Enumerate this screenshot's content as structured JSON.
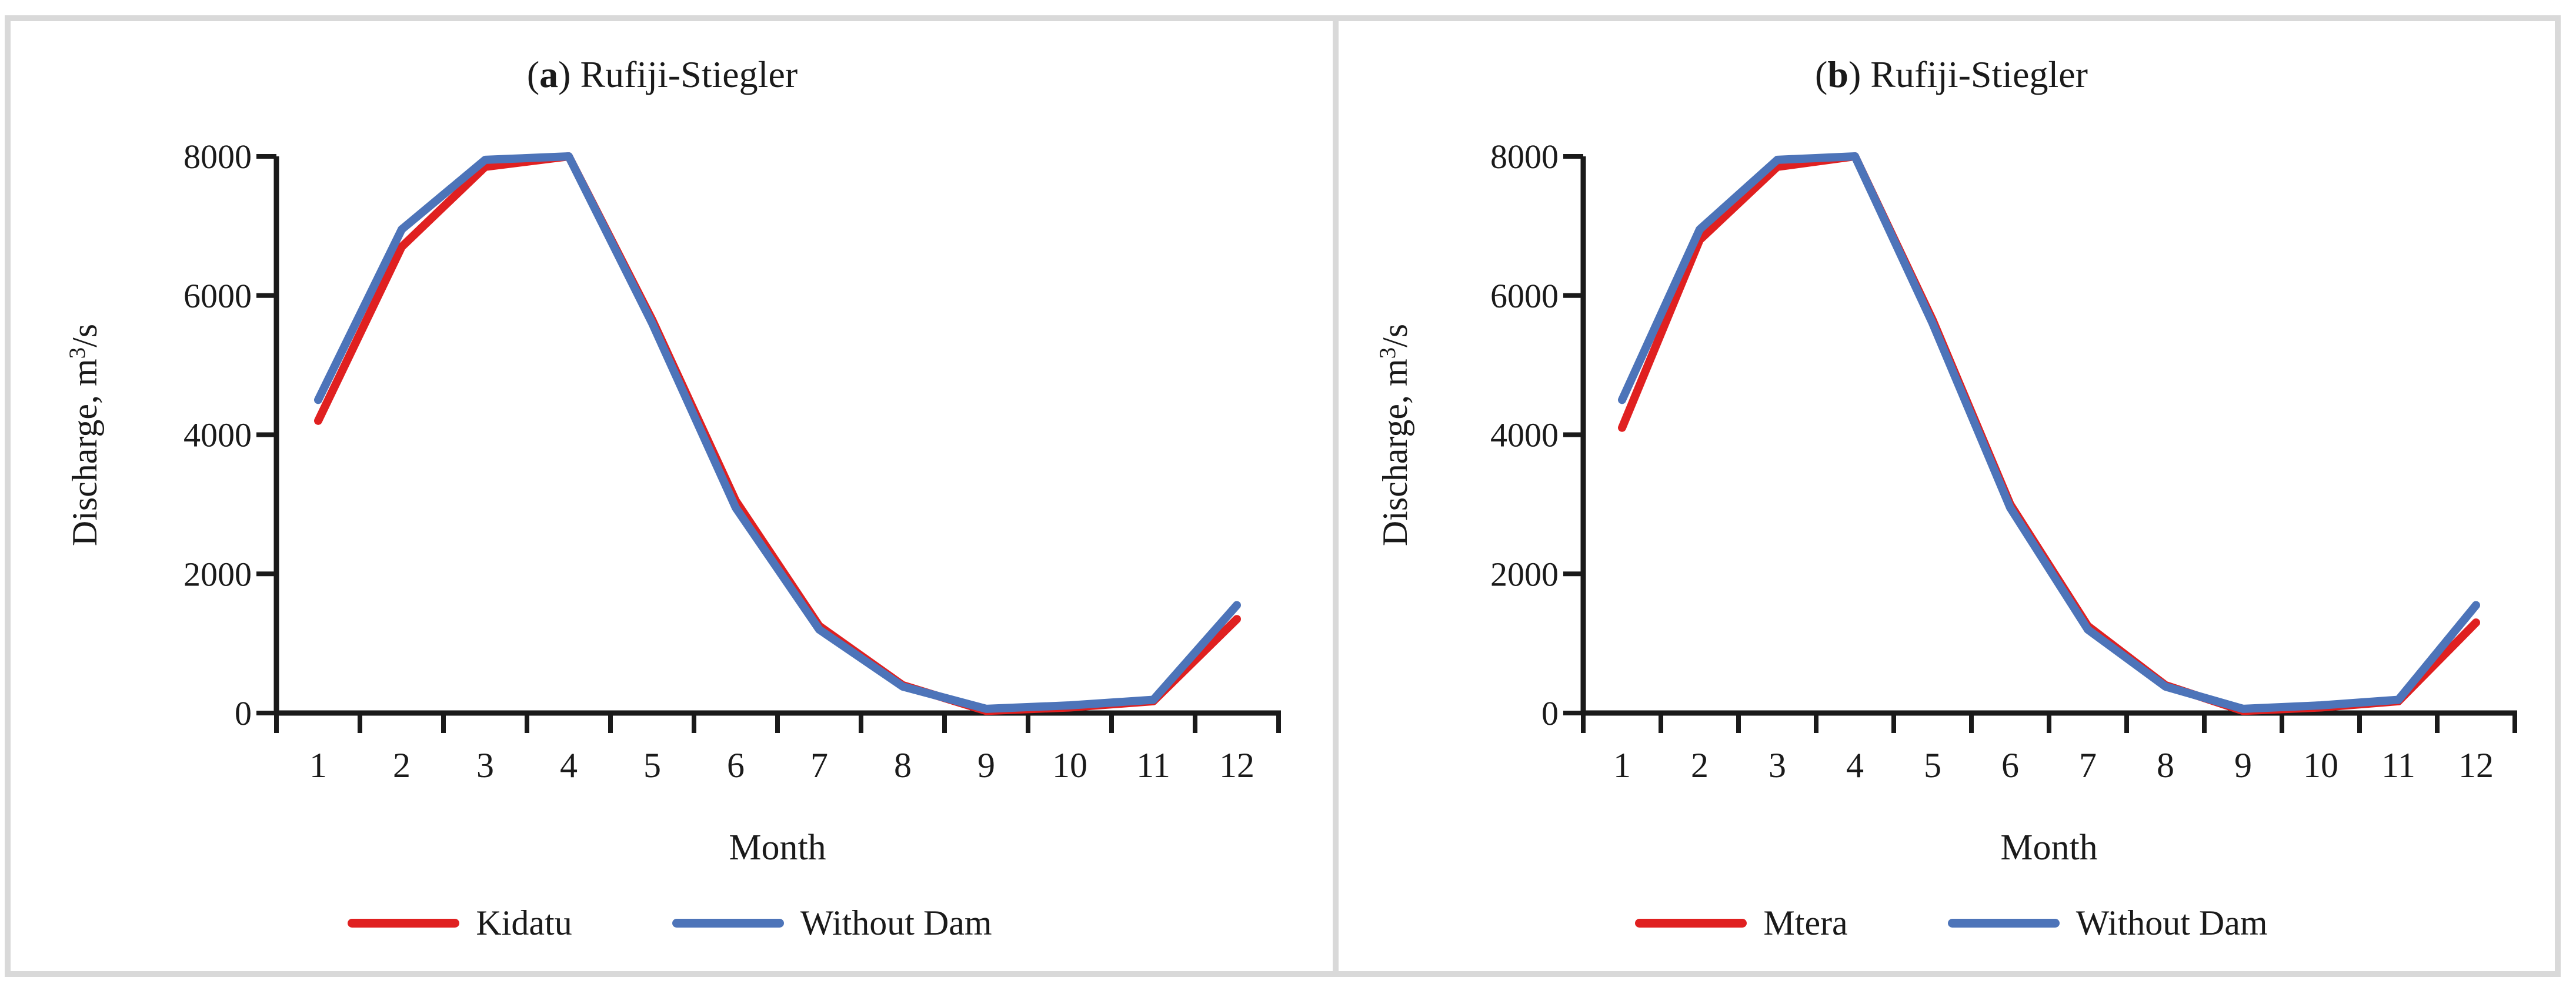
{
  "figure": {
    "frame_color": "#d9d9d9",
    "background": "#ffffff",
    "axis_color": "#1a1a1a",
    "text_color": "#1a1a1a"
  },
  "chart_data": [
    {
      "type": "line",
      "panel_label": "a",
      "title": "Rufiji-Stiegler",
      "xlabel": "Month",
      "ylabel": "Discharge, m³/s",
      "x": [
        1,
        2,
        3,
        4,
        5,
        6,
        7,
        8,
        9,
        10,
        11,
        12
      ],
      "x_tick_labels": [
        "1",
        "2",
        "3",
        "4",
        "5",
        "6",
        "7",
        "8",
        "9",
        "10",
        "11",
        "12"
      ],
      "y_tick_labels": [
        "0",
        "2000",
        "4000",
        "6000",
        "8000"
      ],
      "ylim": [
        0,
        8000
      ],
      "y_tick_step": 2000,
      "grid": false,
      "legend_position": "bottom",
      "series": [
        {
          "name": "Kidatu",
          "color": "#e02020",
          "values": [
            4200,
            6700,
            7850,
            8000,
            5650,
            3050,
            1250,
            400,
            30,
            80,
            170,
            1350
          ]
        },
        {
          "name": "Without Dam",
          "color": "#4d74b9",
          "values": [
            4500,
            6950,
            7950,
            8000,
            5600,
            2950,
            1200,
            380,
            60,
            110,
            190,
            1550
          ]
        }
      ]
    },
    {
      "type": "line",
      "panel_label": "b",
      "title": "Rufiji-Stiegler",
      "xlabel": "Month",
      "ylabel": "Discharge, m³/s",
      "x": [
        1,
        2,
        3,
        4,
        5,
        6,
        7,
        8,
        9,
        10,
        11,
        12
      ],
      "x_tick_labels": [
        "1",
        "2",
        "3",
        "4",
        "5",
        "6",
        "7",
        "8",
        "9",
        "10",
        "11",
        "12"
      ],
      "y_tick_labels": [
        "0",
        "2000",
        "4000",
        "6000",
        "8000"
      ],
      "ylim": [
        0,
        8000
      ],
      "y_tick_step": 2000,
      "grid": false,
      "legend_position": "bottom",
      "series": [
        {
          "name": "Mtera",
          "color": "#e02020",
          "values": [
            4100,
            6800,
            7850,
            8000,
            5650,
            3000,
            1250,
            400,
            30,
            80,
            170,
            1300
          ]
        },
        {
          "name": "Without Dam",
          "color": "#4d74b9",
          "values": [
            4500,
            6950,
            7950,
            8000,
            5600,
            2950,
            1200,
            380,
            60,
            110,
            190,
            1550
          ]
        }
      ]
    }
  ]
}
